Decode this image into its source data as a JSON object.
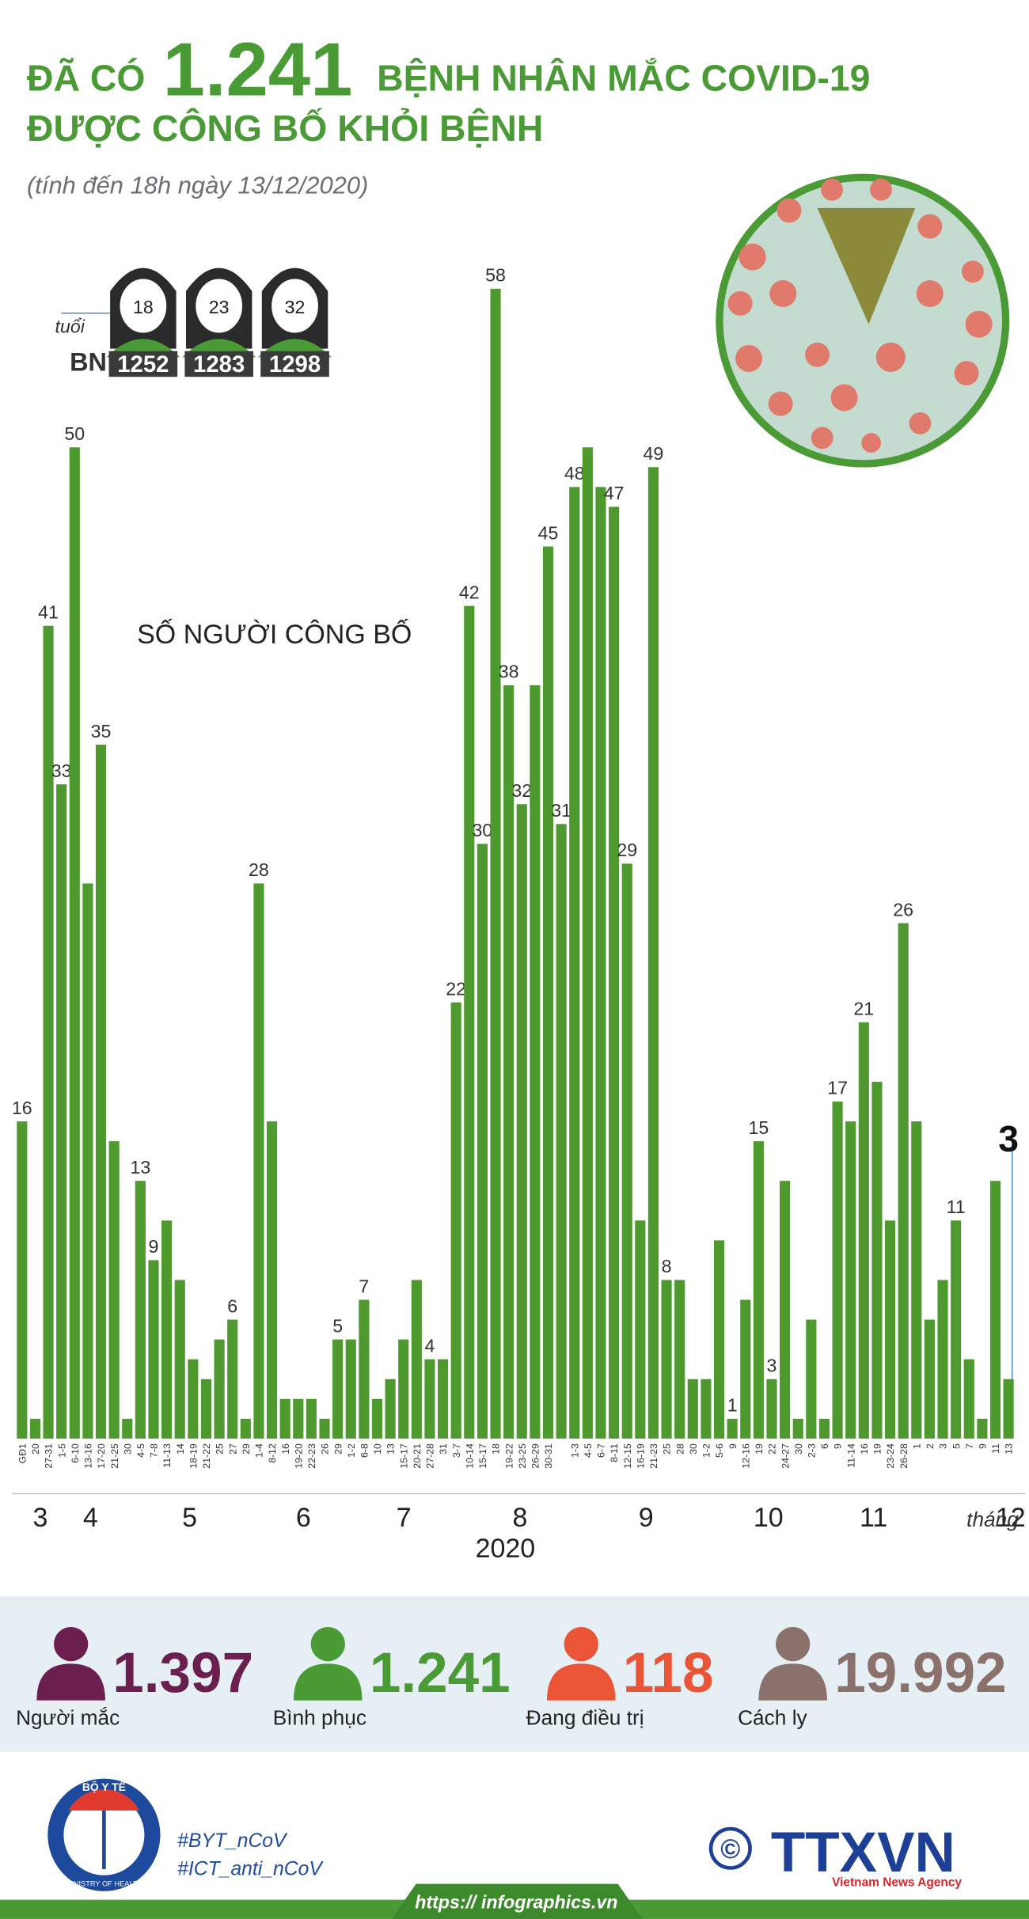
{
  "header": {
    "title_prefix": "ĐÃ CÓ",
    "title_number": "1.241",
    "title_suffix": "BỆNH NHÂN MẮC COVID-19",
    "title_line2": "ĐƯỢC CÔNG BỐ KHỎI BỆNH",
    "subtitle": "(tính đến 18h ngày 13/12/2020)"
  },
  "patients": {
    "age_label": "tuổi",
    "id_label": "BN",
    "items": [
      {
        "age": "18",
        "id": "1252"
      },
      {
        "age": "23",
        "id": "1283"
      },
      {
        "age": "32",
        "id": "1298"
      }
    ]
  },
  "chart_data": {
    "type": "bar",
    "annotation": "SỐ NGƯỜI CÔNG BỐ",
    "color": "#4e9a2f",
    "categories": [
      "GĐ1",
      "20",
      "27-31",
      "1-5",
      "6-10",
      "13-16",
      "17-20",
      "21-25",
      "30",
      "4-5",
      "7-8",
      "11-13",
      "14",
      "18-19",
      "21-22",
      "25",
      "27",
      "29",
      "1-4",
      "8-12",
      "16",
      "19-20",
      "22-23",
      "26",
      "29",
      "1-2",
      "6-8",
      "10",
      "13",
      "15-17",
      "20-21",
      "27-28",
      "31",
      "3-7",
      "10-14",
      "15-17",
      "18",
      "19-22",
      "23-25",
      "26-29",
      "30-31",
      null,
      "1-3",
      "4-5",
      "6-7",
      "8-11",
      "12-15",
      "16-19",
      "21-23",
      "25",
      "28",
      "30",
      "1-2",
      "5-6",
      "9",
      "12-16",
      "19",
      "22",
      "24-27",
      "30",
      "2-3",
      "6",
      "9",
      "11-14",
      "16",
      "19",
      "23-24",
      "26-28",
      "1",
      "2",
      "3",
      "5",
      "7",
      "9",
      "11",
      "13"
    ],
    "values": [
      16,
      1,
      41,
      33,
      50,
      28,
      35,
      15,
      1,
      13,
      9,
      11,
      8,
      4,
      3,
      5,
      6,
      1,
      28,
      16,
      2,
      2,
      2,
      1,
      5,
      5,
      7,
      2,
      3,
      5,
      8,
      4,
      4,
      22,
      42,
      30,
      58,
      38,
      32,
      38,
      45,
      31,
      48,
      50,
      48,
      47,
      29,
      11,
      49,
      8,
      8,
      3,
      3,
      10,
      1,
      7,
      15,
      3,
      13,
      1,
      6,
      1,
      17,
      16,
      21,
      18,
      11,
      26,
      16,
      6,
      8,
      11,
      4,
      1,
      13,
      3
    ],
    "value_labels": [
      "16",
      null,
      "41",
      "33",
      "50",
      null,
      "35",
      null,
      null,
      "13",
      "9",
      null,
      null,
      null,
      null,
      null,
      "6",
      null,
      "28",
      null,
      null,
      null,
      null,
      null,
      "5",
      null,
      "7",
      null,
      null,
      null,
      null,
      "4",
      null,
      "22",
      "42",
      "30",
      "58",
      "38",
      "32",
      null,
      "45",
      "31",
      "48",
      null,
      null,
      "47",
      "29",
      null,
      "49",
      "8",
      null,
      null,
      null,
      null,
      "1",
      null,
      "15",
      "3",
      null,
      null,
      null,
      null,
      "17",
      null,
      "21",
      null,
      null,
      "26",
      null,
      null,
      null,
      "11",
      null,
      null,
      null,
      "3"
    ],
    "months": [
      "3",
      "4",
      "5",
      "6",
      "7",
      "8",
      "9",
      "10",
      "11",
      "12"
    ],
    "month_prefix": "tháng",
    "year": "2020"
  },
  "stats": [
    {
      "value": "1.397",
      "label": "Người mắc",
      "color": "#6b1f4f"
    },
    {
      "value": "1.241",
      "label": "Bình phục",
      "color": "#4a9a35"
    },
    {
      "value": "118",
      "label": "Đang điều trị",
      "color": "#ea5437"
    },
    {
      "value": "19.992",
      "label": "Cách ly",
      "color": "#8a716b"
    }
  ],
  "footer": {
    "logo_top": "BỘ Y TẾ",
    "logo_bottom": "MINISTRY OF HEALTH",
    "hashtag1": "#BYT_nCoV",
    "hashtag2": "#ICT_anti_nCoV",
    "copyright": "©",
    "agency": "TTXVN",
    "agency_en": "Vietnam News Agency",
    "url": "https:// infographics.vn"
  }
}
